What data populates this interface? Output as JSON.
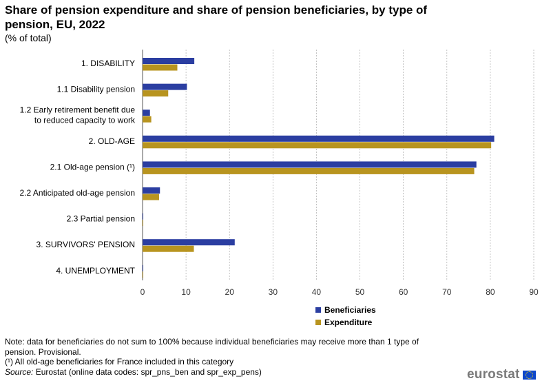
{
  "chart_data": {
    "type": "bar",
    "orientation": "horizontal",
    "title": "Share of pension expenditure and share of pension beneficiaries, by type of pension, EU, 2022",
    "subtitle": "(% of total)",
    "categories": [
      "1. DISABILITY",
      "1.1 Disability pension",
      "1.2 Early retirement benefit due to reduced capacity to work",
      "2. OLD-AGE",
      "2.1 Old-age pension (¹)",
      "2.2 Anticipated old-age pension",
      "2.3 Partial pension",
      "3. SURVIVORS' PENSION",
      "4. UNEMPLOYMENT"
    ],
    "series": [
      {
        "name": "Beneficiaries",
        "color": "#2b3ea1",
        "values": [
          11.9,
          10.2,
          1.7,
          80.9,
          76.8,
          4.0,
          0.1,
          21.2,
          0.1
        ]
      },
      {
        "name": "Expenditure",
        "color": "#b8941f",
        "values": [
          8.0,
          5.9,
          2.0,
          80.2,
          76.3,
          3.8,
          0.1,
          11.8,
          0.1
        ]
      }
    ],
    "xlim": [
      0,
      90
    ],
    "xticks": [
      0,
      10,
      20,
      30,
      40,
      50,
      60,
      70,
      80,
      90
    ],
    "grid": "vertical-dashed",
    "legend_position": "bottom-center"
  },
  "notes": {
    "note": "Note: data for beneficiaries do not sum to 100% because individual beneficiaries may receive more than 1 type of pension. Provisional.",
    "footnote": "(¹) All old-age beneficiaries for France included in this category",
    "source_label": "Source:",
    "source_text": " Eurostat (online data codes: spr_pns_ben and spr_exp_pens)"
  },
  "branding": {
    "logo_text": "eurostat",
    "flag_icon": "eu-flag-icon"
  }
}
